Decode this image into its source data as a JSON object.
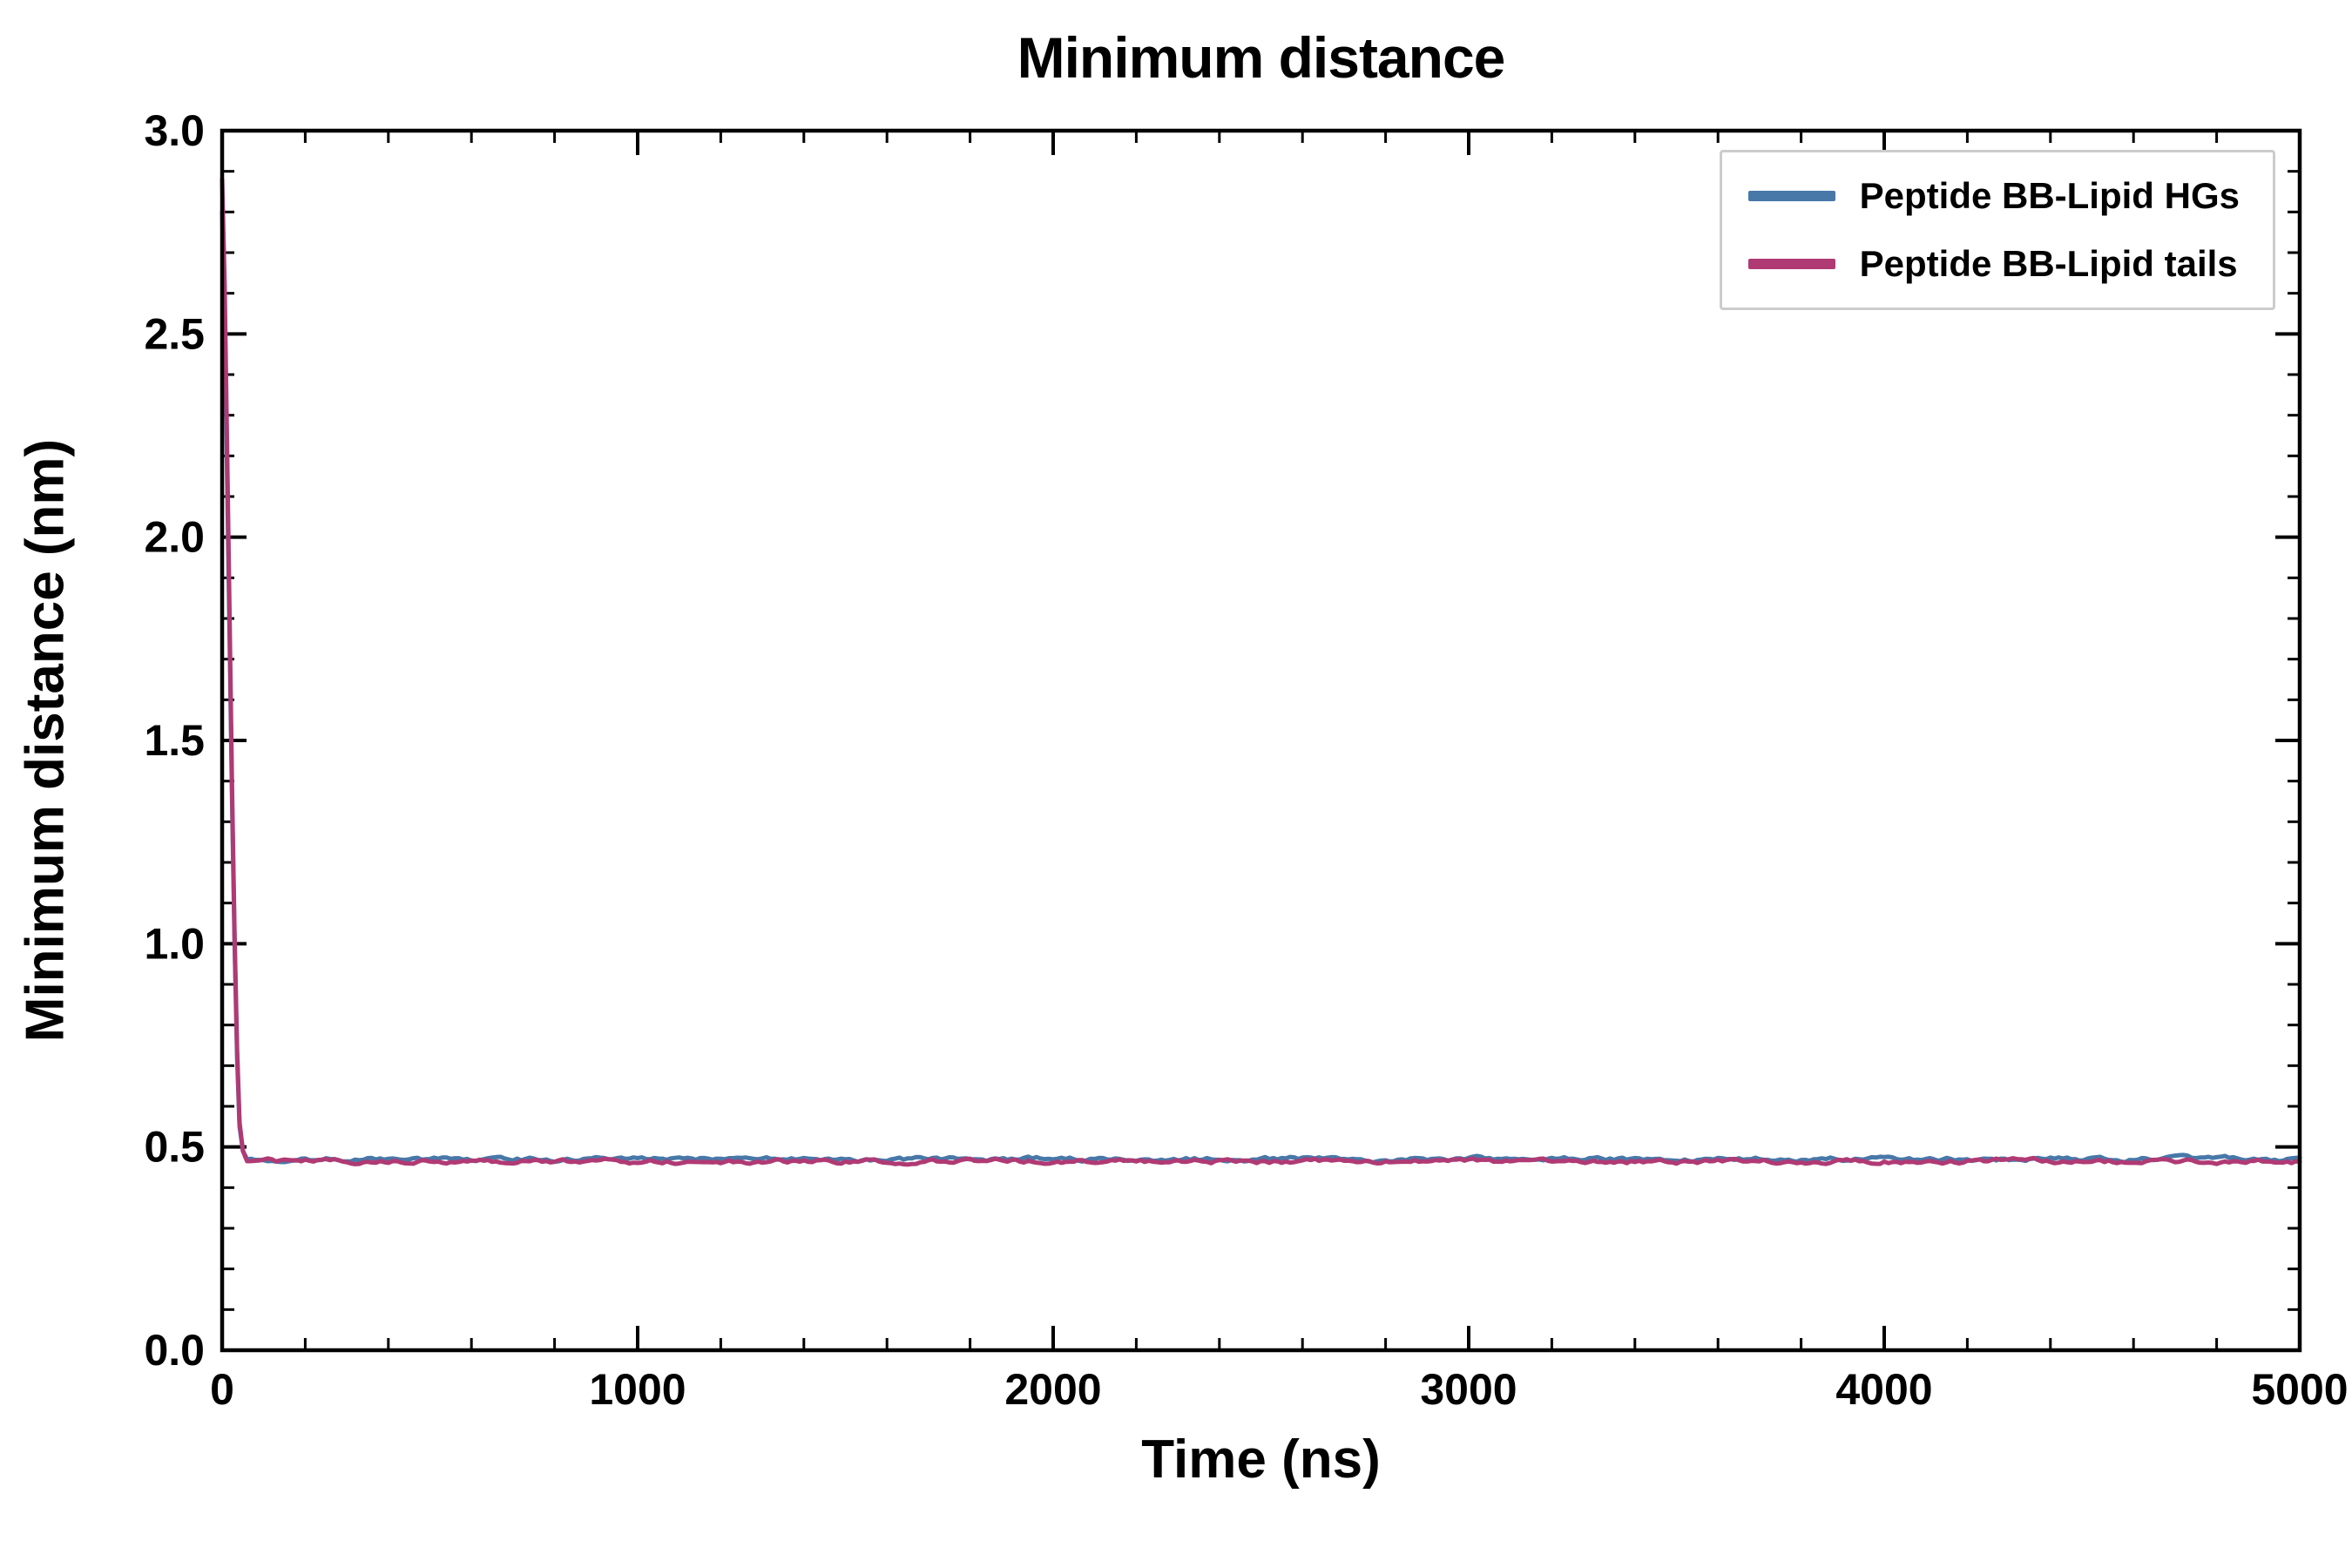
{
  "chart_data": {
    "type": "line",
    "title": "Minimum distance",
    "xlabel": "Time (ns)",
    "ylabel": "Minimum distance (nm)",
    "xlim": [
      0,
      5000
    ],
    "ylim": [
      0.0,
      3.0
    ],
    "x_ticks": [
      0,
      1000,
      2000,
      3000,
      4000,
      5000
    ],
    "x_tick_labels": [
      "0",
      "1000",
      "2000",
      "3000",
      "4000",
      "5000"
    ],
    "y_ticks": [
      0.0,
      0.5,
      1.0,
      1.5,
      2.0,
      2.5,
      3.0
    ],
    "y_tick_labels": [
      "0.0",
      "0.5",
      "1.0",
      "1.5",
      "2.0",
      "2.5",
      "3.0"
    ],
    "x_minor_step": 200,
    "y_minor_step": 0.1,
    "grid": false,
    "legend_position": "upper right",
    "axis_color": "#000000",
    "series": [
      {
        "name": "Peptide BB-Lipid HGs",
        "color": "#4878a8",
        "initial_points": [
          [
            0,
            2.8
          ],
          [
            6,
            2.55
          ],
          [
            12,
            2.15
          ],
          [
            18,
            1.75
          ],
          [
            24,
            1.35
          ],
          [
            30,
            1.0
          ],
          [
            36,
            0.72
          ],
          [
            42,
            0.55
          ],
          [
            50,
            0.49
          ],
          [
            60,
            0.47
          ]
        ],
        "plateau": {
          "start": 60,
          "end": 5000,
          "mean": 0.47,
          "noise": 0.012
        }
      },
      {
        "name": "Peptide BB-Lipid tails",
        "color": "#b03a74",
        "initial_points": [
          [
            0,
            2.88
          ],
          [
            6,
            2.62
          ],
          [
            12,
            2.22
          ],
          [
            18,
            1.8
          ],
          [
            24,
            1.38
          ],
          [
            30,
            1.02
          ],
          [
            36,
            0.74
          ],
          [
            42,
            0.56
          ],
          [
            50,
            0.49
          ],
          [
            60,
            0.465
          ]
        ],
        "plateau": {
          "start": 60,
          "end": 5000,
          "mean": 0.465,
          "noise": 0.012
        }
      }
    ]
  }
}
